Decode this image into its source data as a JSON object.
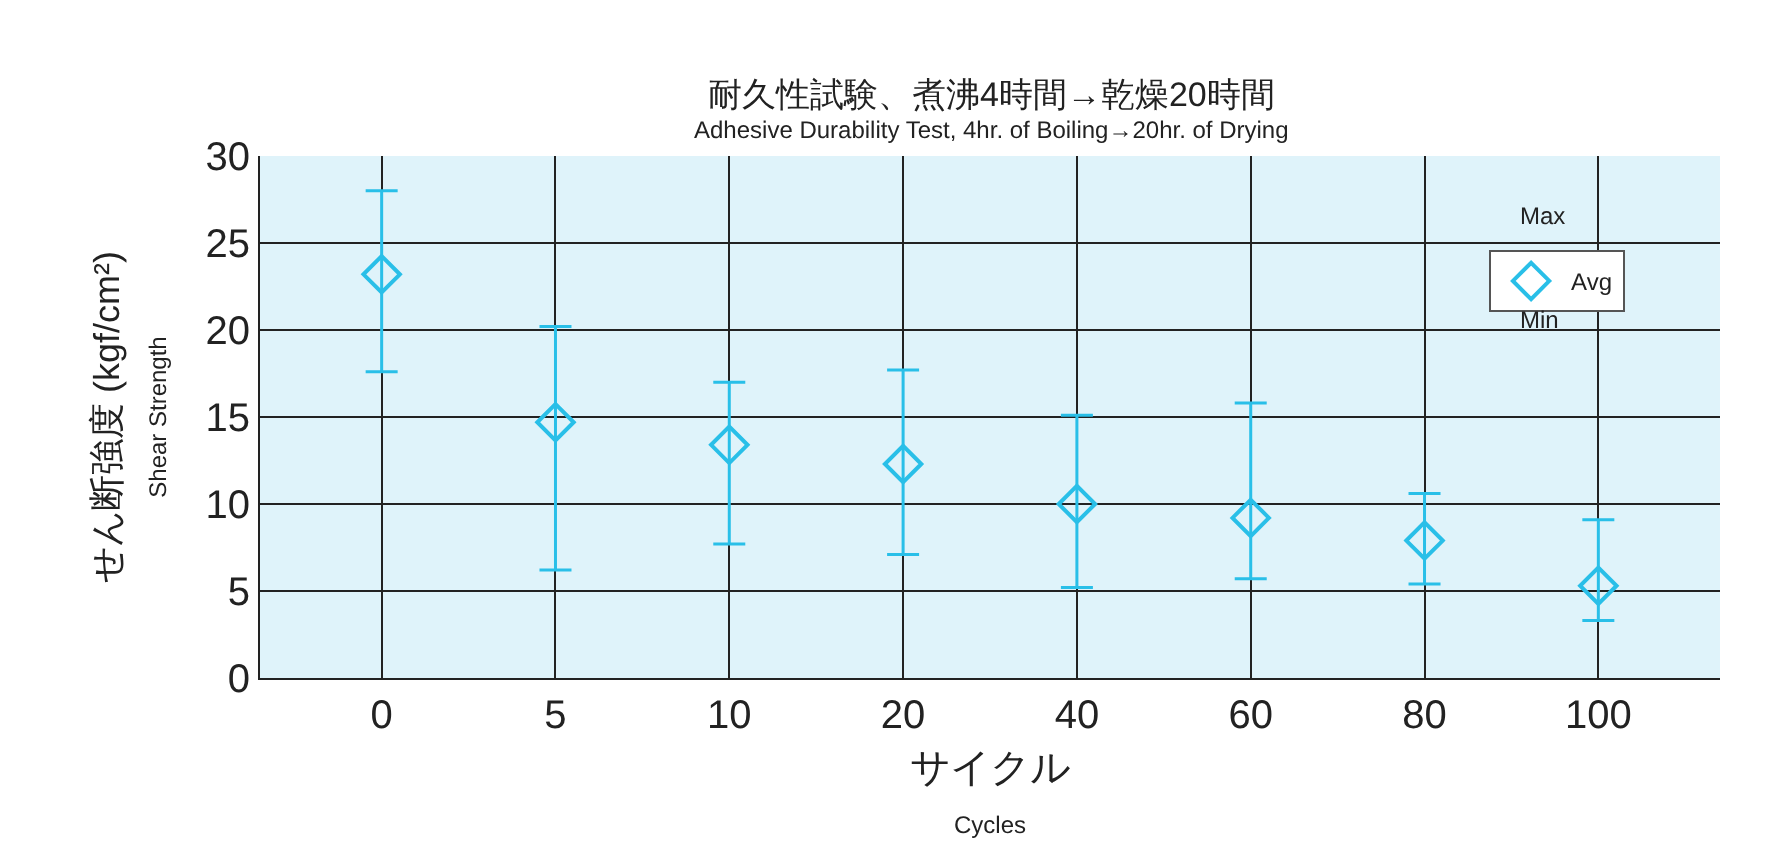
{
  "chart_data": {
    "type": "scatter",
    "title": "耐久性試験、煮沸4時間→乾燥20時間",
    "subtitle": "Adhesive Durability Test, 4hr. of Boiling→20hr. of Drying",
    "xlabel": "サイクル\nCycles",
    "ylabel": "せん断強度 (kgf/cm²)\nShear Strength",
    "categories": [
      "0",
      "5",
      "10",
      "20",
      "40",
      "60",
      "80",
      "100"
    ],
    "series": [
      {
        "name": "Avg",
        "color": "#29bfe8",
        "values": [
          23.2,
          14.7,
          13.4,
          12.3,
          10.0,
          9.2,
          7.9,
          5.3
        ],
        "errors": [
          [
            17.6,
            28.0
          ],
          [
            6.2,
            20.2
          ],
          [
            7.7,
            17.0
          ],
          [
            7.1,
            17.7
          ],
          [
            5.2,
            15.1
          ],
          [
            5.7,
            15.8
          ],
          [
            5.4,
            10.6
          ],
          [
            3.3,
            9.1
          ]
        ]
      }
    ],
    "annotations": [
      "Max",
      "Min"
    ],
    "ylim": [
      0,
      30
    ],
    "yticks": [
      0,
      5,
      10,
      15,
      20,
      25,
      30
    ],
    "grid": true,
    "legend": "top right",
    "marker": "diamond"
  }
}
